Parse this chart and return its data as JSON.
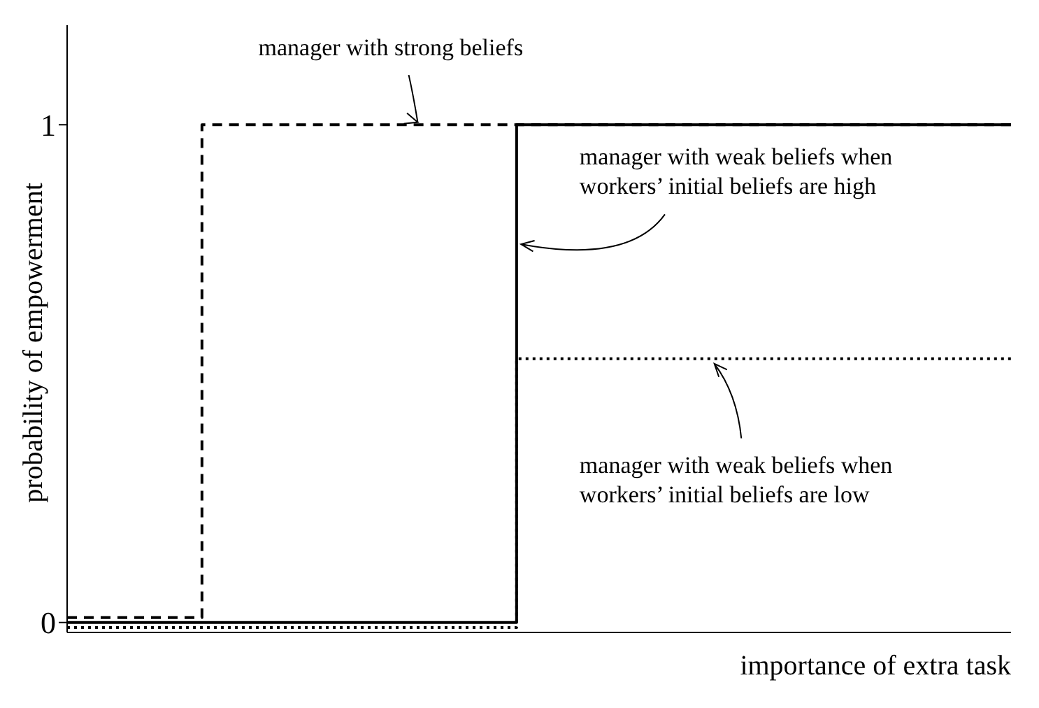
{
  "chart_data": {
    "type": "step",
    "xlabel": "importance of extra task",
    "ylabel": "probability of empowerment",
    "categories": [
      null,
      null,
      null,
      null,
      null,
      null,
      null,
      null,
      null,
      null,
      null,
      null,
      null,
      null,
      null,
      null,
      null,
      null,
      null,
      null,
      null,
      null
    ],
    "ylim": [
      -0.02,
      1.2
    ],
    "yticks": [
      0,
      1
    ],
    "grid": false,
    "legend": false,
    "tick_labels": "y",
    "marker": "none",
    "series": [
      {
        "name": "manager with strong beliefs",
        "color": "#000000",
        "line_style": "dashed",
        "values": [
          0.01,
          0.01,
          0.01,
          1,
          1,
          1,
          1,
          1,
          1,
          1,
          1,
          1,
          1,
          1,
          1,
          1,
          1,
          1,
          1,
          1,
          1,
          1
        ]
      },
      {
        "name": "manager with weak beliefs when workers’ initial beliefs are high",
        "color": "#000000",
        "line_style": "solid",
        "values": [
          0,
          0,
          0,
          0,
          0,
          0,
          0,
          0,
          0,
          0,
          1,
          1,
          1,
          1,
          1,
          1,
          1,
          1,
          1,
          1,
          1,
          1
        ]
      },
      {
        "name": "manager with weak beliefs when workers’ initial beliefs are low",
        "color": "#000000",
        "line_style": "dotted",
        "values": [
          -0.01,
          -0.01,
          -0.01,
          -0.01,
          -0.01,
          -0.01,
          -0.01,
          -0.01,
          -0.01,
          -0.01,
          0.53,
          0.53,
          0.53,
          0.53,
          0.53,
          0.53,
          0.53,
          0.53,
          0.53,
          0.53,
          0.53,
          0.53
        ]
      }
    ]
  }
}
